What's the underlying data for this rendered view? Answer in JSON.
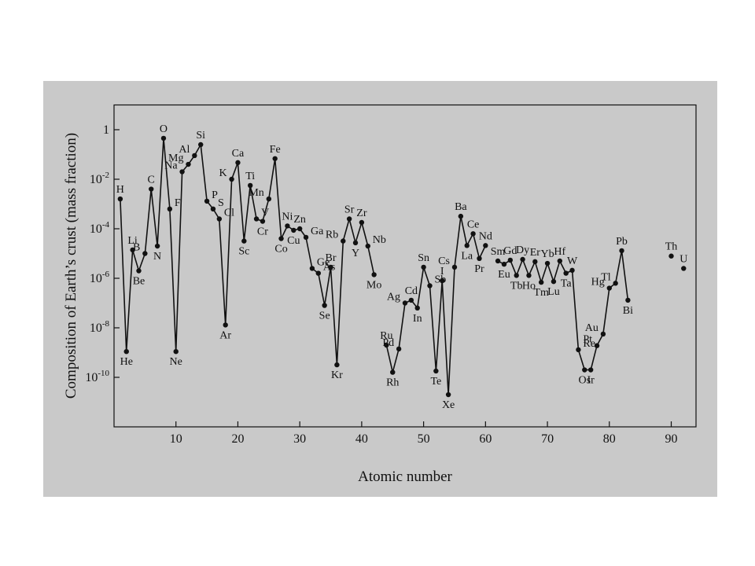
{
  "chart_data": {
    "type": "line",
    "xlabel": "Atomic number",
    "ylabel": "Composition of Earth’s crust (mass fraction)",
    "log_y": true,
    "color": "#111111",
    "xlim": [
      0,
      94
    ],
    "ylim": [
      1e-12,
      10
    ],
    "xticks": [
      10,
      20,
      30,
      40,
      50,
      60,
      70,
      80,
      90
    ],
    "yticks": [
      1,
      {
        "value": 0.01,
        "label": "10",
        "sup": "-2"
      },
      {
        "value": 0.0001,
        "label": "10",
        "sup": "-4"
      },
      {
        "value": 1e-06,
        "label": "10",
        "sup": "-6"
      },
      {
        "value": 1e-08,
        "label": "10",
        "sup": "-8"
      },
      {
        "value": 1e-10,
        "label": "10",
        "sup": "-10"
      }
    ],
    "x": [
      1,
      2,
      3,
      4,
      5,
      6,
      7,
      8,
      9,
      10,
      11,
      12,
      13,
      14,
      15,
      16,
      17,
      18,
      19,
      20,
      21,
      22,
      23,
      24,
      25,
      26,
      27,
      28,
      29,
      30,
      31,
      32,
      33,
      34,
      35,
      36,
      37,
      38,
      39,
      40,
      41,
      42,
      43,
      44,
      45,
      46,
      47,
      48,
      49,
      50,
      51,
      52,
      53,
      54,
      55,
      56,
      57,
      58,
      59,
      60,
      61,
      62,
      63,
      64,
      65,
      66,
      67,
      68,
      69,
      70,
      71,
      72,
      73,
      74,
      75,
      76,
      77,
      78,
      79,
      80,
      81,
      82,
      83,
      84,
      85,
      86,
      87,
      88,
      89,
      90,
      91,
      92
    ],
    "labels": [
      "H",
      "He",
      "Li",
      "Be",
      "B",
      "C",
      "N",
      "O",
      "F",
      "Ne",
      "Na",
      "Mg",
      "Al",
      "Si",
      "P",
      "S",
      "Cl",
      "Ar",
      "K",
      "Ca",
      "Sc",
      "Ti",
      "V",
      "Cr",
      "Mn",
      "Fe",
      "Co",
      "Ni",
      "Cu",
      "Zn",
      "Ga",
      "Ge",
      "As",
      "Se",
      "Br",
      "Kr",
      "Rb",
      "Sr",
      "Y",
      "Zr",
      "Nb",
      "Mo",
      null,
      "Ru",
      "Rh",
      "Pd",
      "Ag",
      "Cd",
      "In",
      "Sn",
      "Sb",
      "Te",
      "I",
      "Xe",
      "Cs",
      "Ba",
      "La",
      "Ce",
      "Pr",
      "Nd",
      null,
      "Sm",
      "Eu",
      "Gd",
      "Tb",
      "Dy",
      "Ho",
      "Er",
      "Tm",
      "Yb",
      "Lu",
      "Hf",
      "Ta",
      "W",
      "Re",
      "Os",
      "Ir",
      "Pt",
      "Au",
      "Hg",
      "Tl",
      "Pb",
      "Bi",
      null,
      null,
      null,
      null,
      null,
      null,
      "Th",
      null,
      "U"
    ],
    "values": [
      0.0016,
      1.1e-09,
      1.4e-05,
      2e-06,
      1e-05,
      0.004,
      2e-05,
      0.45,
      0.00063,
      1.1e-09,
      0.02,
      0.04,
      0.09,
      0.25,
      0.0013,
      0.00063,
      0.00025,
      1.3e-08,
      0.01,
      0.047,
      3.2e-05,
      0.0056,
      0.00025,
      0.0002,
      0.0016,
      0.068,
      4e-05,
      0.00013,
      8.7e-05,
      0.0001,
      4.5e-05,
      2.5e-06,
      1.6e-06,
      8e-08,
      2.8e-06,
      3.2e-10,
      3.2e-05,
      0.00025,
      2.7e-05,
      0.00018,
      2e-05,
      1.4e-06,
      null,
      2e-09,
      1.6e-10,
      1.4e-09,
      1e-07,
      1.3e-07,
      6.3e-08,
      2.8e-06,
      5e-07,
      1.8e-10,
      8e-07,
      2e-11,
      2.8e-06,
      0.00032,
      2.1e-05,
      6.3e-05,
      6.3e-06,
      2.1e-05,
      null,
      5e-06,
      3.7e-06,
      5.4e-06,
      1.3e-06,
      5.8e-06,
      1.3e-06,
      4.7e-06,
      6.9e-07,
      4e-06,
      7.4e-07,
      5e-06,
      1.6e-06,
      2.1e-06,
      1.3e-09,
      2e-10,
      2e-10,
      1.9e-09,
      5.6e-09,
      4e-07,
      6.3e-07,
      1.3e-05,
      1.3e-07,
      null,
      null,
      null,
      null,
      null,
      null,
      7.9e-06,
      null,
      2.5e-06
    ]
  }
}
